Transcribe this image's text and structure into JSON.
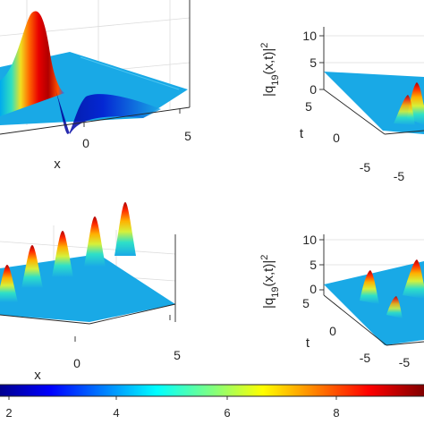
{
  "chart_data": [
    {
      "type": "surface",
      "panel": "top-left",
      "xlabel": "x",
      "x_ticks": [
        "0",
        "5"
      ],
      "wave": "single kink-shaped soliton with a high red ridge and a narrow dark trough"
    },
    {
      "type": "surface",
      "panel": "top-right",
      "zlabel": "|q19(x,t)|²",
      "ylabel": "t",
      "z_ticks": [
        "0",
        "5",
        "10"
      ],
      "t_ticks": [
        "5",
        "0",
        "-5"
      ],
      "x_ticks": [
        "-5"
      ],
      "zlim": [
        0,
        10
      ]
    },
    {
      "type": "surface",
      "panel": "bottom-left",
      "xlabel": "x",
      "x_ticks": [
        "0",
        "5"
      ],
      "peaks": 5
    },
    {
      "type": "surface",
      "panel": "bottom-right",
      "zlabel": "|q19(x,t)|²",
      "ylabel": "t",
      "z_ticks": [
        "0",
        "5",
        "10"
      ],
      "t_ticks": [
        "5",
        "0",
        "-5"
      ],
      "x_ticks": [
        "-5"
      ],
      "zlim": [
        0,
        10
      ]
    }
  ],
  "colorbar": {
    "colormap": "jet",
    "ticks": [
      "2",
      "4",
      "6",
      "8"
    ]
  },
  "labels": {
    "zlabel_base": "|q",
    "zlabel_sub": "19",
    "zlabel_tail": "(x,t)|",
    "zlabel_sup": "2"
  }
}
